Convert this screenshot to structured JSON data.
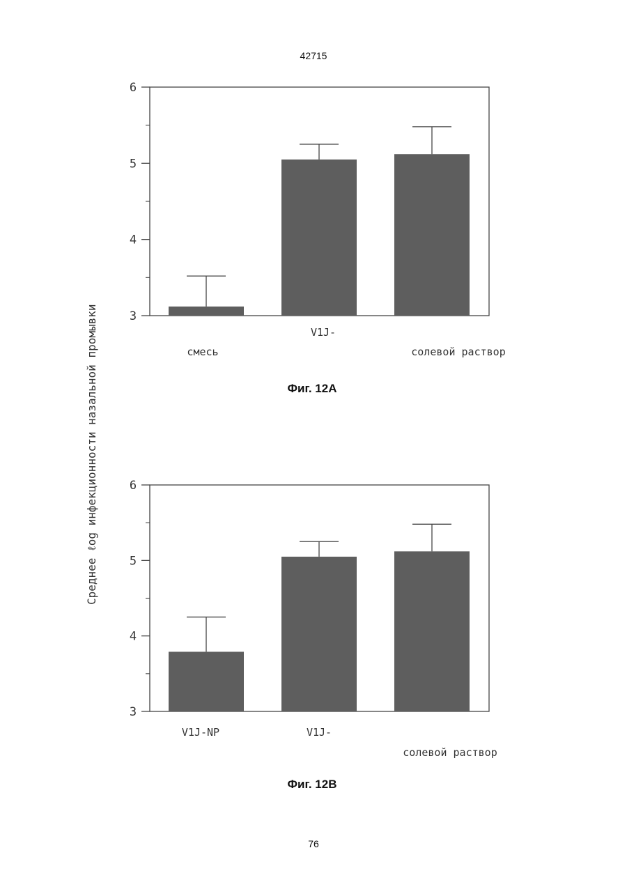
{
  "header": {
    "doc_number": "42715"
  },
  "footer": {
    "page_number": "76"
  },
  "shared_ylabel": "Среднее ℓog инфекционности назальной промывки",
  "chart_data": [
    {
      "type": "bar",
      "caption": "Фиг. 12A",
      "categories": [
        "смесь",
        "V1J-",
        "солевой раствор"
      ],
      "values": [
        3.12,
        5.05,
        5.12
      ],
      "error_upper": [
        3.52,
        5.25,
        5.48
      ],
      "ylim": [
        3,
        6
      ],
      "yticks": [
        "3",
        "4",
        "5",
        "6"
      ],
      "bar_color": "#5e5e5e"
    },
    {
      "type": "bar",
      "caption": "Фиг. 12B",
      "categories": [
        "V1J-NP",
        "V1J-",
        "солевой раствор"
      ],
      "values": [
        3.79,
        5.05,
        5.12
      ],
      "error_upper": [
        4.25,
        5.25,
        5.48
      ],
      "ylim": [
        3,
        6
      ],
      "yticks": [
        "3",
        "4",
        "5",
        "6"
      ],
      "bar_color": "#5e5e5e"
    }
  ]
}
